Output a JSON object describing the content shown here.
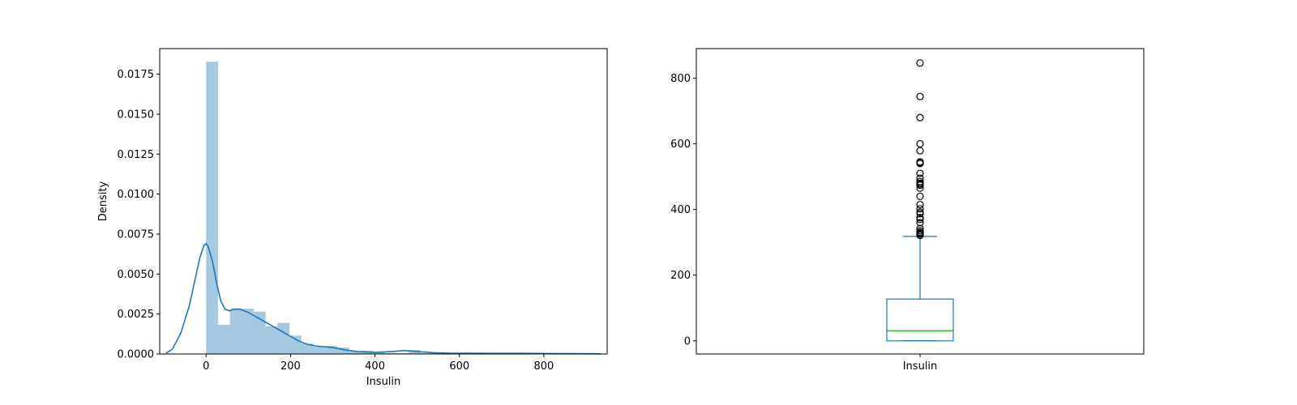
{
  "chart_data": [
    {
      "type": "histogram",
      "xlabel": "Insulin",
      "ylabel": "Density",
      "xlim": [
        -110,
        950
      ],
      "ylim": [
        0,
        0.0191
      ],
      "xticks": [
        0,
        200,
        400,
        600,
        800
      ],
      "yticks": [
        0.0,
        0.0025,
        0.005,
        0.0075,
        0.01,
        0.0125,
        0.015,
        0.0175
      ],
      "ytick_labels": [
        "0.0000",
        "0.0025",
        "0.0050",
        "0.0075",
        "0.0100",
        "0.0125",
        "0.0150",
        "0.0175"
      ],
      "bin_width": 28.2,
      "bins": [
        {
          "x0": 0,
          "density": 0.01828
        },
        {
          "x0": 28.2,
          "density": 0.00183
        },
        {
          "x0": 56.4,
          "density": 0.00282
        },
        {
          "x0": 84.6,
          "density": 0.00284
        },
        {
          "x0": 112.8,
          "density": 0.00265
        },
        {
          "x0": 141.0,
          "density": 0.00172
        },
        {
          "x0": 169.2,
          "density": 0.00195
        },
        {
          "x0": 197.4,
          "density": 0.00115
        },
        {
          "x0": 225.6,
          "density": 0.00065
        },
        {
          "x0": 253.8,
          "density": 0.00045
        },
        {
          "x0": 282.0,
          "density": 0.0005
        },
        {
          "x0": 310.2,
          "density": 0.0004
        },
        {
          "x0": 338.4,
          "density": 0.00015
        },
        {
          "x0": 366.6,
          "density": 0.0002
        },
        {
          "x0": 394.8,
          "density": 0.00012
        },
        {
          "x0": 423.0,
          "density": 5e-05
        },
        {
          "x0": 451.2,
          "density": 5e-05
        },
        {
          "x0": 479.4,
          "density": 0.00025
        },
        {
          "x0": 507.6,
          "density": 5e-05
        },
        {
          "x0": 535.8,
          "density": 8e-05
        },
        {
          "x0": 564.0,
          "density": 4e-05
        },
        {
          "x0": 592.2,
          "density": 4e-05
        },
        {
          "x0": 620.4,
          "density": 0.0
        },
        {
          "x0": 648.6,
          "density": 0.0
        },
        {
          "x0": 676.8,
          "density": 4e-05
        },
        {
          "x0": 705.0,
          "density": 0.0
        },
        {
          "x0": 733.2,
          "density": 4e-05
        },
        {
          "x0": 761.4,
          "density": 0.0
        },
        {
          "x0": 789.6,
          "density": 0.0
        },
        {
          "x0": 817.8,
          "density": 4e-05
        }
      ],
      "kde": {
        "x": [
          -95,
          -80,
          -60,
          -40,
          -25,
          -15,
          -5,
          0,
          5,
          15,
          25,
          35,
          45,
          55,
          65,
          80,
          100,
          120,
          140,
          160,
          180,
          200,
          220,
          240,
          260,
          280,
          300,
          330,
          360,
          400,
          440,
          470,
          500,
          540,
          580,
          620,
          680,
          740,
          800,
          860,
          935
        ],
        "y": [
          5e-05,
          0.0003,
          0.0013,
          0.003,
          0.0048,
          0.006,
          0.0068,
          0.0069,
          0.0067,
          0.0058,
          0.0044,
          0.0033,
          0.0028,
          0.0027,
          0.0028,
          0.0028,
          0.0026,
          0.0023,
          0.002,
          0.0017,
          0.0014,
          0.0011,
          0.0008,
          0.0006,
          0.0005,
          0.00045,
          0.0004,
          0.00025,
          0.00015,
          0.0001,
          0.00015,
          0.00022,
          0.00015,
          8e-05,
          5e-05,
          5e-05,
          4e-05,
          4e-05,
          3e-05,
          2e-05,
          1e-05
        ]
      },
      "colors": {
        "bars": "#1f77b4",
        "bar_opacity": 0.4,
        "kde": "#1f77b4"
      }
    },
    {
      "type": "box",
      "xlabel": "",
      "category": "Insulin",
      "ylim": [
        -40,
        890
      ],
      "yticks": [
        0,
        200,
        400,
        600,
        800
      ],
      "stats": {
        "whisker_low": 0,
        "q1": 0,
        "median": 30.5,
        "q3": 127.25,
        "whisker_high": 318
      },
      "outliers": [
        321,
        325,
        326,
        328,
        330,
        335,
        342,
        360,
        370,
        375,
        387,
        392,
        402,
        415,
        440,
        465,
        474,
        478,
        480,
        485,
        495,
        510,
        540,
        543,
        545,
        579,
        600,
        680,
        744,
        846
      ],
      "colors": {
        "box": "#1f77b4",
        "median": "#2ca02c",
        "outliers": "#000000"
      }
    }
  ]
}
